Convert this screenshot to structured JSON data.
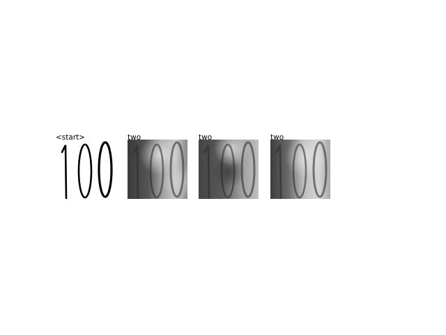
{
  "panels": [
    {
      "label": "<start>",
      "kind": "input"
    },
    {
      "label": "two",
      "kind": "attention"
    },
    {
      "label": "two",
      "kind": "attention"
    },
    {
      "label": "two",
      "kind": "attention"
    }
  ],
  "image": {
    "depicted_text": "100"
  },
  "colors": {
    "background": "#ffffff",
    "ink": "#000000",
    "heatmap_dark": "#3a3a3a",
    "heatmap_light": "#d6d6d6"
  }
}
